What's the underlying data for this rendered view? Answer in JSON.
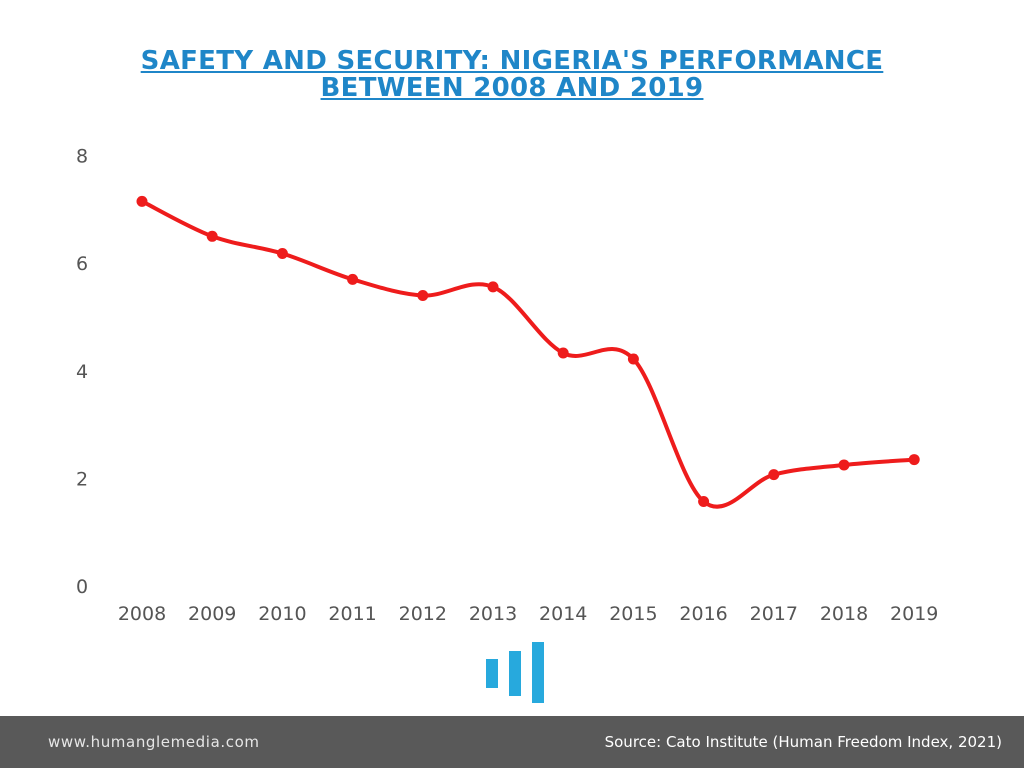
{
  "title_line1": "SAFETY AND SECURITY: NIGERIA'S PERFORMANCE",
  "title_line2": "BETWEEN 2008 AND 2019",
  "colors": {
    "title": "#1f86c8",
    "line": "#ee1c1c",
    "logo": "#27a9dd",
    "footer_bg": "#595959"
  },
  "chart_data": {
    "type": "line",
    "title": "SAFETY AND SECURITY: NIGERIA'S PERFORMANCE BETWEEN 2008 AND 2019",
    "xlabel": "",
    "ylabel": "",
    "categories": [
      "2008",
      "2009",
      "2010",
      "2011",
      "2012",
      "2013",
      "2014",
      "2015",
      "2016",
      "2017",
      "2018",
      "2019"
    ],
    "series": [
      {
        "values": [
          7.15,
          6.5,
          6.18,
          5.7,
          5.4,
          5.56,
          4.33,
          4.22,
          1.57,
          2.07,
          2.25,
          2.35
        ]
      }
    ],
    "yticks": [
      "0",
      "2",
      "4",
      "6",
      "8"
    ],
    "ylim": [
      0,
      8
    ],
    "grid": false,
    "legend": "none",
    "smooth": true
  },
  "footer": {
    "website": "www.humanglemedia.com",
    "source": "Source: Cato Institute (Human Freedom Index, 2021)"
  },
  "icons": {
    "logo": "humangle-bars-logo"
  }
}
